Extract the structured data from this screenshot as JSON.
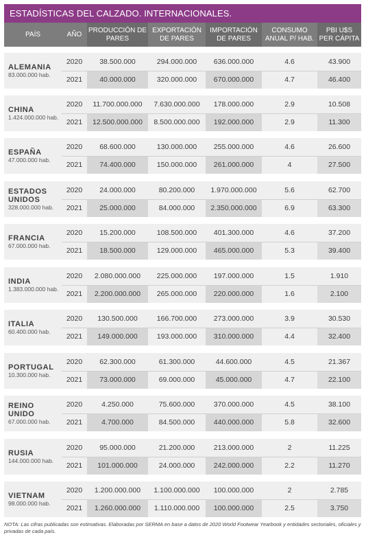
{
  "title": "ESTADÍSTICAS DEL CALZADO. INTERNACIONALES.",
  "headers": {
    "pais": "PAÍS",
    "ano": "AÑO",
    "produccion": "PRODUCCIÓN DE PARES",
    "exportacion": "EXPORTACIÓN DE PARES",
    "importacion": "IMPORTACIÓN DE PARES",
    "consumo": "CONSUMO ANUAL P/ HAB.",
    "pbi": "PBI U$S PER CÁPITA"
  },
  "countries": [
    {
      "name": "ALEMANIA",
      "population": "83.000.000 hab.",
      "rows": [
        {
          "year": "2020",
          "prod": "38.500.000",
          "exp": "294.000.000",
          "imp": "636.000.000",
          "cons": "4.6",
          "pbi": "43.900"
        },
        {
          "year": "2021",
          "prod": "40.000.000",
          "exp": "320.000.000",
          "imp": "670.000.000",
          "cons": "4.7",
          "pbi": "46.400"
        }
      ]
    },
    {
      "name": "CHINA",
      "population": "1.424.000.000 hab.",
      "rows": [
        {
          "year": "2020",
          "prod": "11.700.000.000",
          "exp": "7.630.000.000",
          "imp": "178.000.000",
          "cons": "2.9",
          "pbi": "10.508"
        },
        {
          "year": "2021",
          "prod": "12.500.000.000",
          "exp": "8.500.000.000",
          "imp": "192.000.000",
          "cons": "2.9",
          "pbi": "11.300"
        }
      ]
    },
    {
      "name": "ESPAÑA",
      "population": "47.000.000 hab.",
      "rows": [
        {
          "year": "2020",
          "prod": "68.600.000",
          "exp": "130.000.000",
          "imp": "255.000.000",
          "cons": "4.6",
          "pbi": "26.600"
        },
        {
          "year": "2021",
          "prod": "74.400.000",
          "exp": "150.000.000",
          "imp": "261.000.000",
          "cons": "4",
          "pbi": "27.500"
        }
      ]
    },
    {
      "name": "ESTADOS UNIDOS",
      "population": "328.000.000 hab.",
      "rows": [
        {
          "year": "2020",
          "prod": "24.000.000",
          "exp": "80.200.000",
          "imp": "1.970.000.000",
          "cons": "5.6",
          "pbi": "62.700"
        },
        {
          "year": "2021",
          "prod": "25.000.000",
          "exp": "84.000.000",
          "imp": "2.350.000.000",
          "cons": "6.9",
          "pbi": "63.300"
        }
      ]
    },
    {
      "name": "FRANCIA",
      "population": "67.000.000 hab.",
      "rows": [
        {
          "year": "2020",
          "prod": "15.200.000",
          "exp": "108.500.000",
          "imp": "401.300.000",
          "cons": "4.6",
          "pbi": "37.200"
        },
        {
          "year": "2021",
          "prod": "18.500.000",
          "exp": "129.000.000",
          "imp": "465.000.000",
          "cons": "5.3",
          "pbi": "39.400"
        }
      ]
    },
    {
      "name": "INDIA",
      "population": "1.383.000.000 hab.",
      "rows": [
        {
          "year": "2020",
          "prod": "2.080.000.000",
          "exp": "225.000.000",
          "imp": "197.000.000",
          "cons": "1.5",
          "pbi": "1.910"
        },
        {
          "year": "2021",
          "prod": "2.200.000.000",
          "exp": "265.000.000",
          "imp": "220.000.000",
          "cons": "1.6",
          "pbi": "2.100"
        }
      ]
    },
    {
      "name": "ITALIA",
      "population": "60.400.000 hab.",
      "rows": [
        {
          "year": "2020",
          "prod": "130.500.000",
          "exp": "166.700.000",
          "imp": "273.000.000",
          "cons": "3.9",
          "pbi": "30.530"
        },
        {
          "year": "2021",
          "prod": "149.000.000",
          "exp": "193.000.000",
          "imp": "310.000.000",
          "cons": "4.4",
          "pbi": "32.400"
        }
      ]
    },
    {
      "name": "PORTUGAL",
      "population": "10.300.000 hab.",
      "rows": [
        {
          "year": "2020",
          "prod": "62.300.000",
          "exp": "61.300.000",
          "imp": "44.600.000",
          "cons": "4.5",
          "pbi": "21.367"
        },
        {
          "year": "2021",
          "prod": "73.000.000",
          "exp": "69.000.000",
          "imp": "45.000.000",
          "cons": "4.7",
          "pbi": "22.100"
        }
      ]
    },
    {
      "name": "REINO UNIDO",
      "population": "67.000.000 hab.",
      "rows": [
        {
          "year": "2020",
          "prod": "4.250.000",
          "exp": "75.600.000",
          "imp": "370.000.000",
          "cons": "4.5",
          "pbi": "38.100"
        },
        {
          "year": "2021",
          "prod": "4.700.000",
          "exp": "84.500.000",
          "imp": "440.000.000",
          "cons": "5.8",
          "pbi": "32.600"
        }
      ]
    },
    {
      "name": "RUSIA",
      "population": "144.000.000 hab.",
      "rows": [
        {
          "year": "2020",
          "prod": "95.000.000",
          "exp": "21.200.000",
          "imp": "213.000.000",
          "cons": "2",
          "pbi": "11.225"
        },
        {
          "year": "2021",
          "prod": "101.000.000",
          "exp": "24.000.000",
          "imp": "242.000.000",
          "cons": "2.2",
          "pbi": "11.270"
        }
      ]
    },
    {
      "name": "VIETNAM",
      "population": "98.000.000 hab.",
      "rows": [
        {
          "year": "2020",
          "prod": "1.200.000.000",
          "exp": "1.100.000.000",
          "imp": "100.000.000",
          "cons": "2",
          "pbi": "2.785"
        },
        {
          "year": "2021",
          "prod": "1.260.000.000",
          "exp": "1.110.000.000",
          "imp": "100.000.000",
          "cons": "2.5",
          "pbi": "3.750"
        }
      ]
    }
  ],
  "note": "NOTA: Las cifras publicadas son estimativas. Elaboradas por SERMA en base a datos de 2020 World Footwear Yearbook y entidades sectoriales, oficiales y privadas de cada país."
}
